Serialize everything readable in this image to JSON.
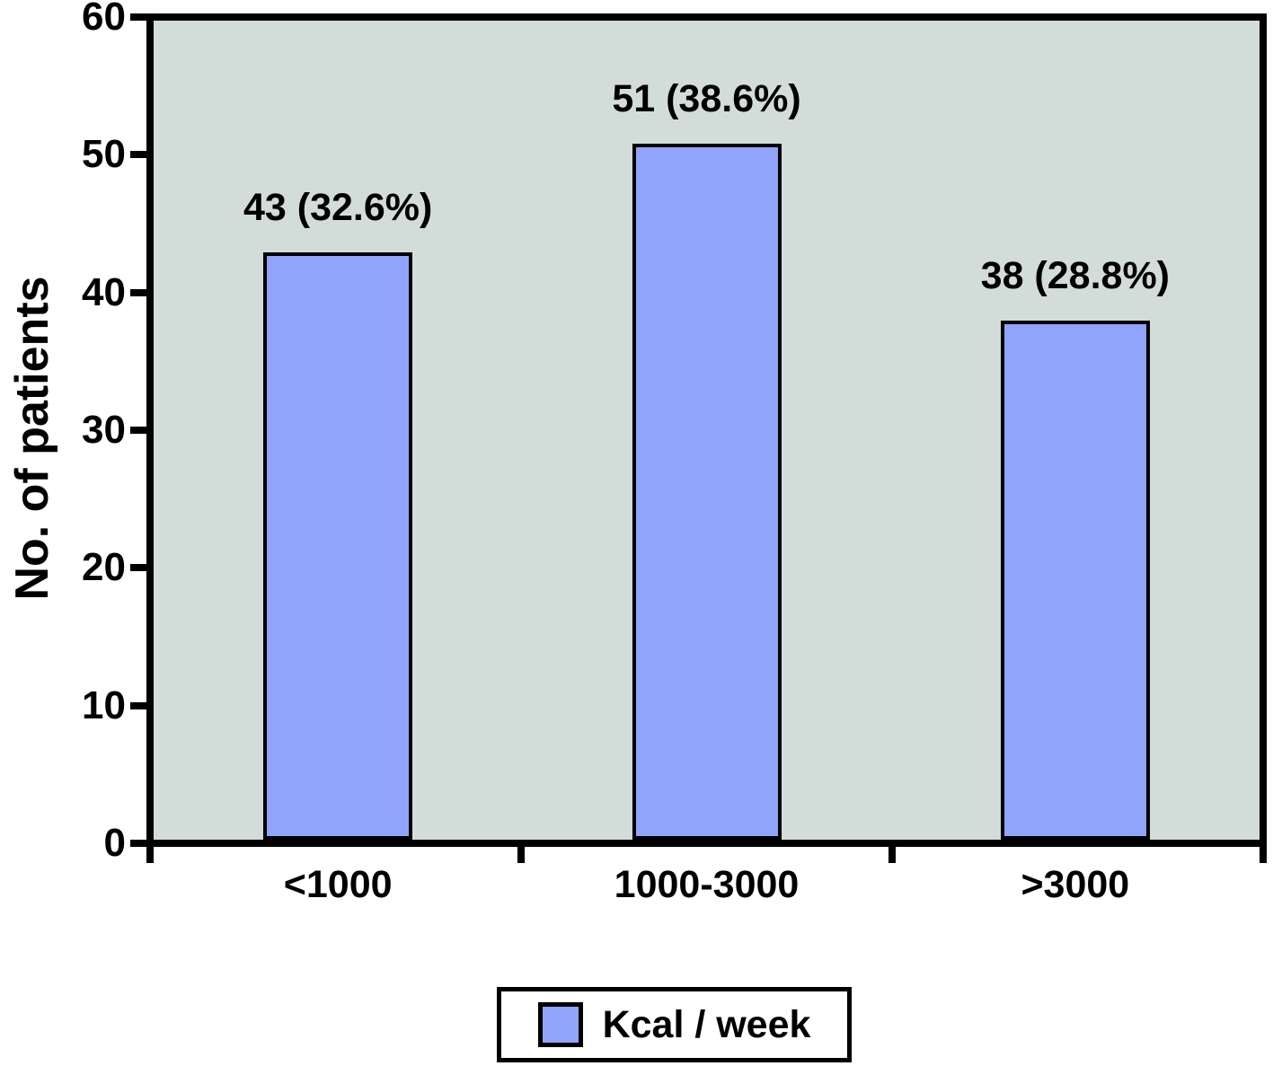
{
  "chart_data": {
    "type": "bar",
    "categories": [
      "<1000",
      "1000-3000",
      ">3000"
    ],
    "values": [
      43,
      51,
      38
    ],
    "bar_labels": [
      "43 (32.6%)",
      "51 (38.6%)",
      "38 (28.8%)"
    ],
    "title": "",
    "xlabel": "",
    "ylabel": "No. of patients",
    "ylim": [
      0,
      60
    ],
    "yticks": [
      0,
      10,
      20,
      30,
      40,
      50,
      60
    ],
    "grid": false,
    "legend": {
      "label": "Kcal / week",
      "position": "bottom-center"
    },
    "colors": {
      "bar_fill": "#8fa4fa",
      "bar_border": "#000000",
      "plot_background": "#d2ddd9",
      "axis": "#000000",
      "text": "#000000",
      "page_background": "#ffffff"
    }
  }
}
